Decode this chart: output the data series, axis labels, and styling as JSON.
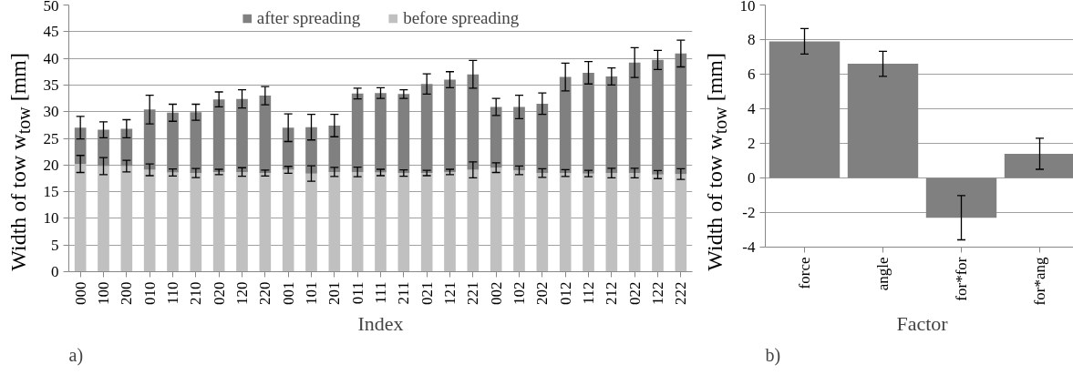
{
  "chart_data": [
    {
      "type": "bar",
      "stacked": true,
      "xlabel": "Index",
      "ylabel": "Width of tow w$_{tow}$ [mm]",
      "annotations": [
        "a)"
      ],
      "categories": [
        "000",
        "100",
        "200",
        "010",
        "110",
        "210",
        "020",
        "120",
        "220",
        "001",
        "101",
        "201",
        "011",
        "111",
        "211",
        "021",
        "121",
        "221",
        "002",
        "102",
        "202",
        "012",
        "112",
        "212",
        "022",
        "122",
        "222"
      ],
      "series": [
        {
          "name": "before spreading",
          "color": "#c0c0c0",
          "values": [
            20.2,
            19.8,
            19.8,
            19.1,
            18.6,
            18.5,
            18.7,
            18.7,
            18.5,
            19.1,
            18.4,
            18.7,
            18.7,
            18.6,
            18.5,
            18.5,
            18.7,
            19.1,
            19.5,
            19.0,
            18.5,
            18.5,
            18.4,
            18.5,
            18.5,
            18.2,
            18.3
          ],
          "errors": [
            1.6,
            1.6,
            1.1,
            1.1,
            0.65,
            0.85,
            0.5,
            0.8,
            0.55,
            0.65,
            1.45,
            0.85,
            0.9,
            0.6,
            0.6,
            0.5,
            0.5,
            1.5,
            0.9,
            0.8,
            0.8,
            0.65,
            0.6,
            0.9,
            0.9,
            0.75,
            1.0
          ]
        },
        {
          "name": "after spreading",
          "color": "#808080",
          "values": [
            6.8,
            6.8,
            7.0,
            11.3,
            11.2,
            11.4,
            13.6,
            13.7,
            14.5,
            7.9,
            8.7,
            8.7,
            14.7,
            14.9,
            14.8,
            16.7,
            17.3,
            17.9,
            11.4,
            11.9,
            13.0,
            18.0,
            18.9,
            18.1,
            20.7,
            21.5,
            22.6
          ],
          "errors": [
            2.1,
            1.5,
            1.7,
            2.7,
            1.6,
            1.5,
            1.4,
            1.7,
            1.7,
            2.6,
            2.4,
            2.1,
            1.0,
            1.0,
            0.8,
            1.9,
            1.5,
            2.6,
            1.6,
            2.2,
            2.0,
            2.6,
            2.1,
            1.6,
            2.8,
            1.8,
            2.5
          ]
        }
      ],
      "ylim": [
        0,
        50
      ],
      "yticks": [
        0,
        5,
        10,
        15,
        20,
        25,
        30,
        35,
        40,
        45,
        50
      ],
      "grid": "y",
      "legend": "top"
    },
    {
      "type": "bar",
      "xlabel": "Factor",
      "ylabel": "Width of tow w$_{tow}$ [mm]",
      "annotations": [
        "b)"
      ],
      "categories": [
        "force",
        "angle",
        "for*for",
        "for*ang"
      ],
      "values": [
        7.9,
        6.6,
        -2.3,
        1.4
      ],
      "errors": [
        0.74,
        0.72,
        1.28,
        0.9
      ],
      "color": "#808080",
      "ylim": [
        -4,
        10
      ],
      "yticks": [
        -4,
        -2,
        0,
        2,
        4,
        6,
        8,
        10
      ],
      "grid": "y"
    }
  ]
}
